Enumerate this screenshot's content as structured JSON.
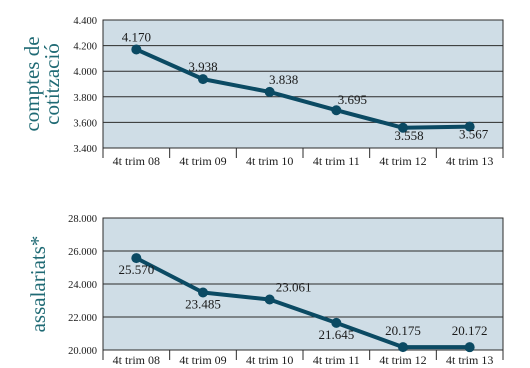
{
  "chart_data": [
    {
      "type": "line",
      "ylabel": [
        "comptes de",
        "cotització"
      ],
      "categories": [
        "4t trim 08",
        "4t trim 09",
        "4t trim 10",
        "4t trim 11",
        "4t trim 12",
        "4t trim 13"
      ],
      "values": [
        4170,
        3938,
        3838,
        3695,
        3558,
        3567
      ],
      "value_labels": [
        "4.170",
        "3.938",
        "3.838",
        "3.695",
        "3.558",
        "3.567"
      ],
      "ylim": [
        3400,
        4400
      ],
      "yticks": [
        3400,
        3600,
        3800,
        4000,
        4200,
        4400
      ],
      "ytick_labels": [
        "3.400",
        "3.600",
        "3.800",
        "4.000",
        "4.200",
        "4.400"
      ],
      "grid": true,
      "line_color": "#0b4a63",
      "background": "#cfdde6"
    },
    {
      "type": "line",
      "ylabel": [
        "assalariats*"
      ],
      "categories": [
        "4t trim 08",
        "4t trim 09",
        "4t trim 10",
        "4t trim 11",
        "4t trim 12",
        "4t trim 13"
      ],
      "values": [
        25570,
        23485,
        23061,
        21645,
        20175,
        20172
      ],
      "value_labels": [
        "25.570",
        "23.485",
        "23.061",
        "21.645",
        "20.175",
        "20.172"
      ],
      "ylim": [
        20000,
        28000
      ],
      "yticks": [
        20000,
        22000,
        24000,
        26000,
        28000
      ],
      "ytick_labels": [
        "20.000",
        "22.000",
        "24.000",
        "26.000",
        "28.000"
      ],
      "grid": true,
      "line_color": "#0b4a63",
      "background": "#cfdde6"
    }
  ]
}
